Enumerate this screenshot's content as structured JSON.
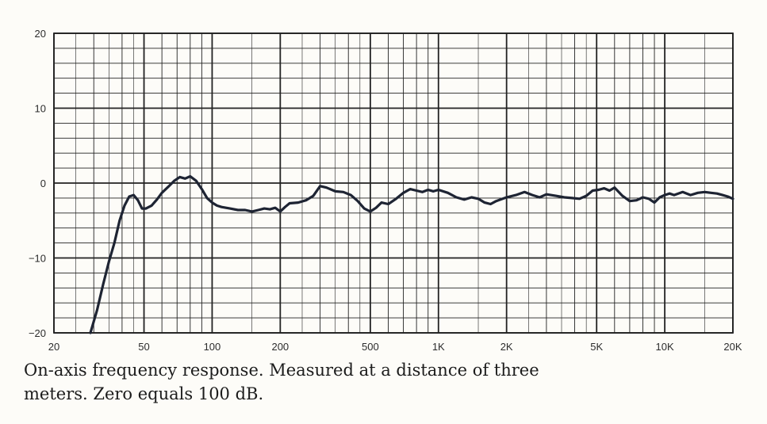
{
  "chart_data": {
    "type": "line",
    "title": "",
    "xlabel": "",
    "ylabel": "",
    "x_scale": "log",
    "xlim": [
      20,
      20000
    ],
    "ylim": [
      -20,
      20
    ],
    "grid": true,
    "x_tick_labels": [
      {
        "value": 20,
        "label": "20"
      },
      {
        "value": 50,
        "label": "50"
      },
      {
        "value": 100,
        "label": "100"
      },
      {
        "value": 200,
        "label": "200"
      },
      {
        "value": 500,
        "label": "500"
      },
      {
        "value": 1000,
        "label": "1K"
      },
      {
        "value": 2000,
        "label": "2K"
      },
      {
        "value": 5000,
        "label": "5K"
      },
      {
        "value": 10000,
        "label": "10K"
      },
      {
        "value": 20000,
        "label": "20K"
      }
    ],
    "y_tick_labels": [
      {
        "value": 20,
        "label": "20"
      },
      {
        "value": 10,
        "label": "10"
      },
      {
        "value": 0,
        "label": "0"
      },
      {
        "value": -10,
        "label": "−10"
      },
      {
        "value": -20,
        "label": "−20"
      }
    ],
    "series": [
      {
        "color": "#1e2433",
        "x": [
          29,
          31,
          33,
          35,
          37,
          39,
          41,
          43,
          45,
          47,
          49,
          51,
          54,
          57,
          60,
          64,
          68,
          72,
          76,
          80,
          85,
          90,
          95,
          100,
          105,
          110,
          120,
          130,
          140,
          150,
          160,
          170,
          180,
          190,
          200,
          210,
          220,
          240,
          260,
          280,
          300,
          320,
          350,
          380,
          410,
          440,
          470,
          500,
          530,
          560,
          600,
          650,
          700,
          750,
          800,
          850,
          900,
          950,
          1000,
          1100,
          1200,
          1300,
          1400,
          1500,
          1600,
          1700,
          1800,
          2000,
          2200,
          2400,
          2600,
          2800,
          3000,
          3300,
          3600,
          3900,
          4200,
          4500,
          4800,
          5100,
          5400,
          5700,
          6000,
          6500,
          7000,
          7500,
          8000,
          8500,
          9000,
          9500,
          10000,
          10500,
          11000,
          12000,
          13000,
          14000,
          15000,
          16000,
          17000,
          18000,
          19000,
          20000
        ],
        "y": [
          -20,
          -17,
          -13.5,
          -10.5,
          -8,
          -5,
          -3,
          -1.8,
          -1.6,
          -2.3,
          -3.4,
          -3.4,
          -3,
          -2.2,
          -1.3,
          -0.5,
          0.3,
          0.8,
          0.6,
          0.9,
          0.3,
          -0.8,
          -2,
          -2.6,
          -3,
          -3.2,
          -3.4,
          -3.6,
          -3.6,
          -3.8,
          -3.6,
          -3.4,
          -3.5,
          -3.3,
          -3.8,
          -3.2,
          -2.7,
          -2.6,
          -2.3,
          -1.7,
          -0.4,
          -0.6,
          -1.1,
          -1.2,
          -1.6,
          -2.4,
          -3.4,
          -3.8,
          -3.3,
          -2.6,
          -2.8,
          -2.1,
          -1.3,
          -0.8,
          -1,
          -1.2,
          -0.9,
          -1.1,
          -0.9,
          -1.3,
          -1.9,
          -2.2,
          -1.9,
          -2.1,
          -2.6,
          -2.8,
          -2.4,
          -1.9,
          -1.6,
          -1.2,
          -1.6,
          -1.9,
          -1.5,
          -1.7,
          -1.9,
          -2,
          -2.1,
          -1.7,
          -1,
          -0.9,
          -0.7,
          -1,
          -0.6,
          -1.7,
          -2.4,
          -2.3,
          -1.9,
          -2.1,
          -2.6,
          -1.9,
          -1.6,
          -1.4,
          -1.6,
          -1.2,
          -1.6,
          -1.3,
          -1.2,
          -1.3,
          -1.4,
          -1.6,
          -1.8,
          -2.1
        ]
      }
    ]
  },
  "caption": {
    "line1": "On-axis frequency response. Measured at a distance of three",
    "line2": "meters. Zero equals 100 dB."
  }
}
